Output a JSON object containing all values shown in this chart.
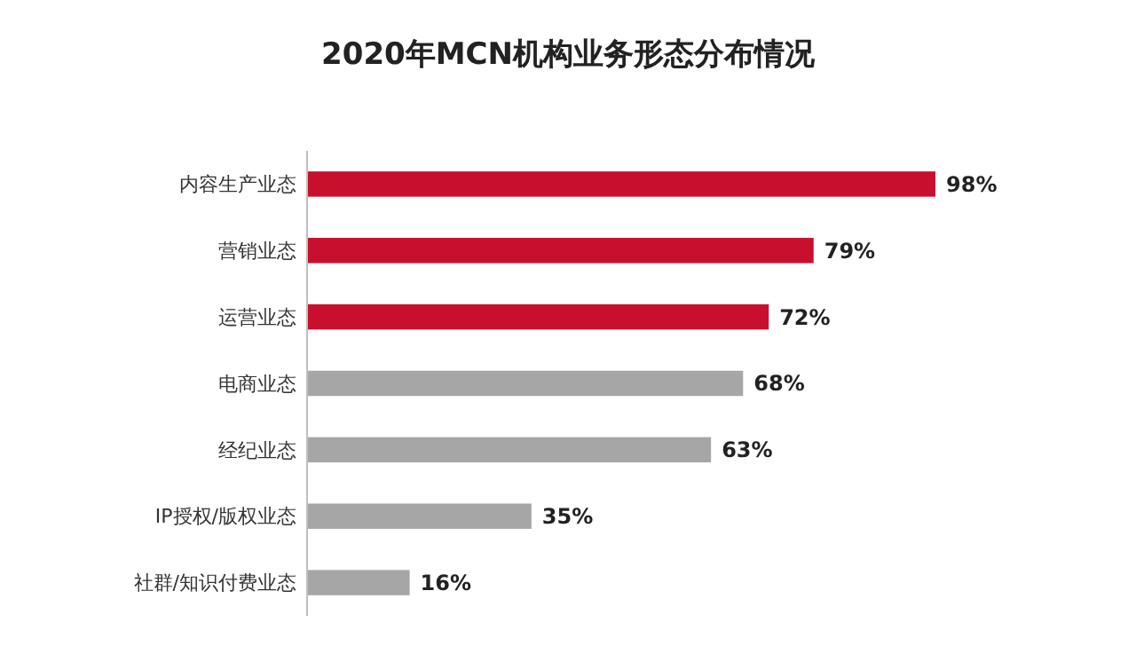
{
  "chart_data": {
    "type": "bar",
    "orientation": "horizontal",
    "title": "2020年MCN机构业务形态分布情况",
    "categories": [
      "内容生产业态",
      "营销业态",
      "运营业态",
      "电商业态",
      "经纪业态",
      "IP授权/版权业态",
      "社群/知识付费业态"
    ],
    "values": [
      98,
      79,
      72,
      68,
      63,
      35,
      16
    ],
    "value_labels": [
      "98%",
      "79%",
      "72%",
      "68%",
      "63%",
      "35%",
      "16%"
    ],
    "colors": [
      "#c8102e",
      "#c8102e",
      "#c8102e",
      "#a6a6a6",
      "#a6a6a6",
      "#a6a6a6",
      "#a6a6a6"
    ]
  }
}
